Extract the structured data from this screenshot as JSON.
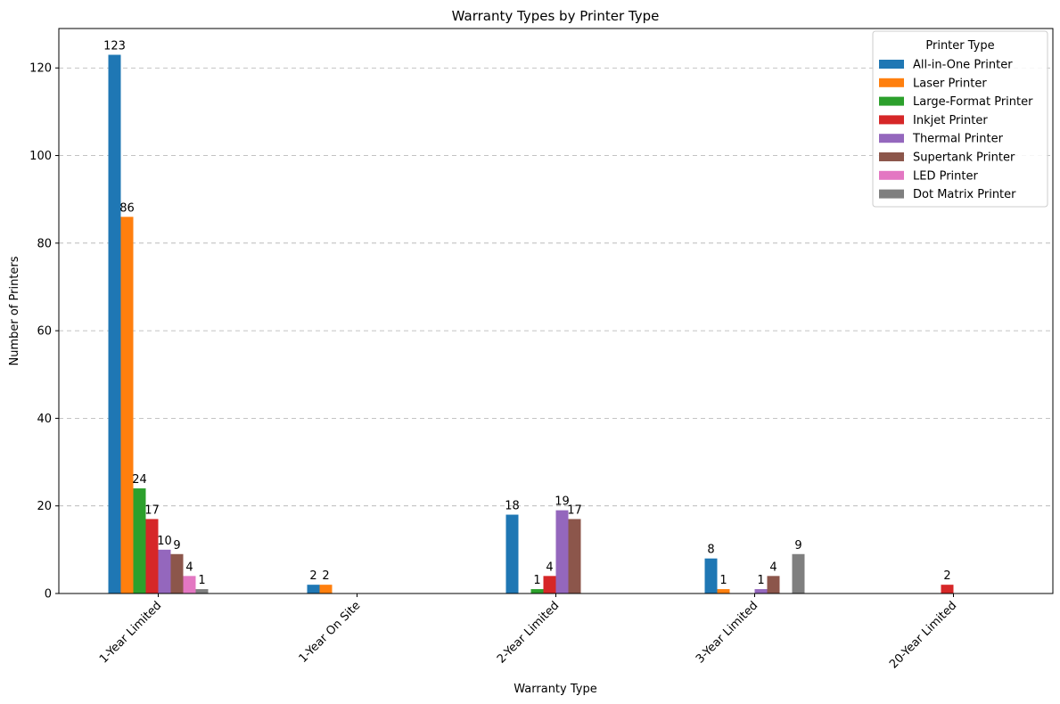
{
  "chart_data": {
    "type": "bar",
    "title": "Warranty Types by Printer Type",
    "xlabel": "Warranty Type",
    "ylabel": "Number of Printers",
    "categories": [
      "1-Year Limited",
      "1-Year On Site",
      "2-Year Limited",
      "3-Year Limited",
      "20-Year Limited"
    ],
    "ylim": [
      0,
      129
    ],
    "yticks": [
      0,
      20,
      40,
      60,
      80,
      100,
      120
    ],
    "grid": "y-dashed",
    "legend": {
      "title": "Printer Type",
      "placement": "top-right"
    },
    "series": [
      {
        "name": "All-in-One Printer",
        "color": "#1f77b4",
        "values": [
          123,
          2,
          18,
          8,
          0
        ]
      },
      {
        "name": "Laser Printer",
        "color": "#ff7f0e",
        "values": [
          86,
          2,
          0,
          1,
          0
        ]
      },
      {
        "name": "Large-Format Printer",
        "color": "#2ca02c",
        "values": [
          24,
          0,
          1,
          0,
          0
        ]
      },
      {
        "name": "Inkjet Printer",
        "color": "#d62728",
        "values": [
          17,
          0,
          4,
          0,
          2
        ]
      },
      {
        "name": "Thermal Printer",
        "color": "#9467bd",
        "values": [
          10,
          0,
          19,
          1,
          0
        ]
      },
      {
        "name": "Supertank Printer",
        "color": "#8c564b",
        "values": [
          9,
          0,
          17,
          4,
          0
        ]
      },
      {
        "name": "LED Printer",
        "color": "#e377c2",
        "values": [
          4,
          0,
          0,
          0,
          0
        ]
      },
      {
        "name": "Dot Matrix Printer",
        "color": "#7f7f7f",
        "values": [
          1,
          0,
          0,
          9,
          0
        ]
      }
    ]
  }
}
